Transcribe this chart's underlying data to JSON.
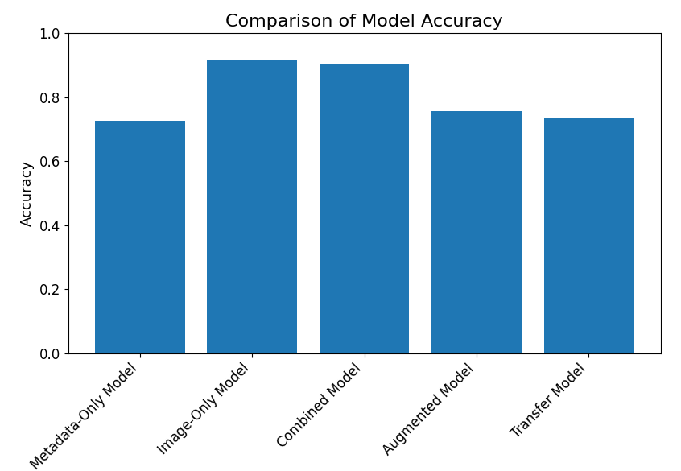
{
  "categories": [
    "Metadata-Only Model",
    "Image-Only Model",
    "Combined Model",
    "Augmented Model",
    "Transfer Model"
  ],
  "values": [
    0.725,
    0.915,
    0.905,
    0.755,
    0.735
  ],
  "bar_color": "#1f77b4",
  "title": "Comparison of Model Accuracy",
  "ylabel": "Accuracy",
  "ylim": [
    0.0,
    1.0
  ],
  "yticks": [
    0.0,
    0.2,
    0.4,
    0.6,
    0.8,
    1.0
  ],
  "title_fontsize": 16,
  "label_fontsize": 13,
  "tick_fontsize": 12,
  "xtick_rotation": 45,
  "figsize": [
    8.46,
    5.85
  ],
  "dpi": 100
}
